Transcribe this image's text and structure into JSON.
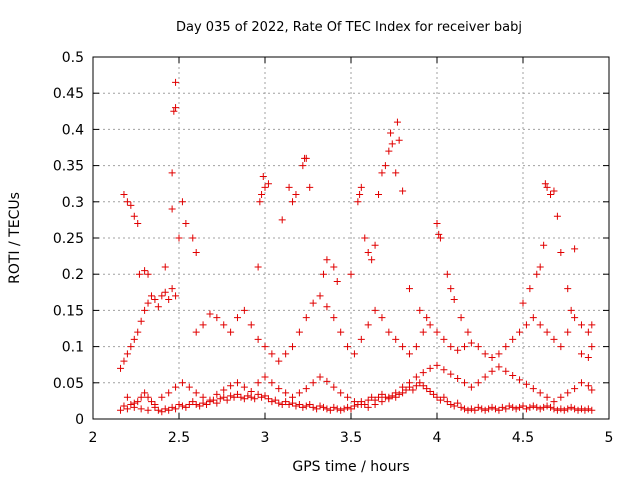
{
  "chart_data": {
    "type": "scatter",
    "title": "Day 035 of 2022, Rate Of TEC Index for receiver babj",
    "xlabel": "GPS time / hours",
    "ylabel": "ROTI / TECUs",
    "xlim": [
      2,
      5
    ],
    "ylim": [
      0,
      0.5
    ],
    "grid": true,
    "marker": "plus",
    "color": "#e00000",
    "x_ticks": [
      "2",
      "2.5",
      "3",
      "3.5",
      "4",
      "4.5",
      "5"
    ],
    "y_ticks": [
      "0",
      "0.05",
      "0.1",
      "0.15",
      "0.2",
      "0.25",
      "0.3",
      "0.35",
      "0.4",
      "0.45",
      "0.5"
    ],
    "points": [
      [
        2.16,
        0.012
      ],
      [
        2.18,
        0.018
      ],
      [
        2.2,
        0.014
      ],
      [
        2.22,
        0.02
      ],
      [
        2.24,
        0.016
      ],
      [
        2.26,
        0.024
      ],
      [
        2.28,
        0.03
      ],
      [
        2.3,
        0.036
      ],
      [
        2.32,
        0.03
      ],
      [
        2.34,
        0.024
      ],
      [
        2.36,
        0.016
      ],
      [
        2.38,
        0.012
      ],
      [
        2.4,
        0.01
      ],
      [
        2.42,
        0.014
      ],
      [
        2.44,
        0.012
      ],
      [
        2.46,
        0.016
      ],
      [
        2.48,
        0.014
      ],
      [
        2.5,
        0.02
      ],
      [
        2.52,
        0.018
      ],
      [
        2.54,
        0.016
      ],
      [
        2.56,
        0.02
      ],
      [
        2.58,
        0.024
      ],
      [
        2.6,
        0.02
      ],
      [
        2.62,
        0.018
      ],
      [
        2.64,
        0.022
      ],
      [
        2.66,
        0.02
      ],
      [
        2.68,
        0.024
      ],
      [
        2.7,
        0.026
      ],
      [
        2.72,
        0.022
      ],
      [
        2.74,
        0.028
      ],
      [
        2.76,
        0.03
      ],
      [
        2.78,
        0.026
      ],
      [
        2.8,
        0.032
      ],
      [
        2.82,
        0.03
      ],
      [
        2.84,
        0.034
      ],
      [
        2.86,
        0.03
      ],
      [
        2.88,
        0.028
      ],
      [
        2.9,
        0.032
      ],
      [
        2.92,
        0.03
      ],
      [
        2.94,
        0.028
      ],
      [
        2.96,
        0.034
      ],
      [
        2.98,
        0.03
      ],
      [
        3.0,
        0.032
      ],
      [
        3.02,
        0.028
      ],
      [
        3.04,
        0.024
      ],
      [
        3.06,
        0.026
      ],
      [
        3.08,
        0.022
      ],
      [
        3.1,
        0.02
      ],
      [
        3.12,
        0.024
      ],
      [
        3.14,
        0.02
      ],
      [
        3.16,
        0.022
      ],
      [
        3.18,
        0.018
      ],
      [
        3.2,
        0.02
      ],
      [
        3.22,
        0.016
      ],
      [
        3.24,
        0.018
      ],
      [
        3.26,
        0.02
      ],
      [
        3.28,
        0.016
      ],
      [
        3.3,
        0.014
      ],
      [
        3.32,
        0.018
      ],
      [
        3.34,
        0.016
      ],
      [
        3.36,
        0.014
      ],
      [
        3.38,
        0.012
      ],
      [
        3.4,
        0.016
      ],
      [
        3.42,
        0.014
      ],
      [
        3.44,
        0.012
      ],
      [
        3.46,
        0.014
      ],
      [
        3.48,
        0.016
      ],
      [
        3.5,
        0.014
      ],
      [
        3.52,
        0.018
      ],
      [
        3.54,
        0.02
      ],
      [
        3.56,
        0.024
      ],
      [
        3.58,
        0.02
      ],
      [
        3.6,
        0.026
      ],
      [
        3.62,
        0.03
      ],
      [
        3.64,
        0.026
      ],
      [
        3.66,
        0.03
      ],
      [
        3.68,
        0.034
      ],
      [
        3.7,
        0.03
      ],
      [
        3.72,
        0.028
      ],
      [
        3.74,
        0.032
      ],
      [
        3.76,
        0.03
      ],
      [
        3.78,
        0.034
      ],
      [
        3.8,
        0.036
      ],
      [
        3.82,
        0.04
      ],
      [
        3.84,
        0.044
      ],
      [
        3.86,
        0.04
      ],
      [
        3.88,
        0.046
      ],
      [
        3.9,
        0.05
      ],
      [
        3.92,
        0.046
      ],
      [
        3.94,
        0.042
      ],
      [
        3.96,
        0.038
      ],
      [
        3.98,
        0.034
      ],
      [
        4.0,
        0.03
      ],
      [
        4.02,
        0.026
      ],
      [
        4.04,
        0.03
      ],
      [
        4.06,
        0.024
      ],
      [
        4.08,
        0.02
      ],
      [
        4.1,
        0.018
      ],
      [
        4.12,
        0.022
      ],
      [
        4.14,
        0.016
      ],
      [
        4.16,
        0.014
      ],
      [
        4.18,
        0.012
      ],
      [
        4.2,
        0.014
      ],
      [
        4.22,
        0.012
      ],
      [
        4.24,
        0.016
      ],
      [
        4.26,
        0.014
      ],
      [
        4.28,
        0.012
      ],
      [
        4.3,
        0.014
      ],
      [
        4.32,
        0.016
      ],
      [
        4.34,
        0.014
      ],
      [
        4.36,
        0.012
      ],
      [
        4.38,
        0.016
      ],
      [
        4.4,
        0.014
      ],
      [
        4.42,
        0.018
      ],
      [
        4.44,
        0.016
      ],
      [
        4.46,
        0.014
      ],
      [
        4.48,
        0.016
      ],
      [
        4.5,
        0.018
      ],
      [
        4.52,
        0.014
      ],
      [
        4.54,
        0.016
      ],
      [
        4.56,
        0.018
      ],
      [
        4.58,
        0.016
      ],
      [
        4.6,
        0.014
      ],
      [
        4.62,
        0.016
      ],
      [
        4.64,
        0.018
      ],
      [
        4.66,
        0.016
      ],
      [
        4.68,
        0.014
      ],
      [
        4.7,
        0.012
      ],
      [
        4.72,
        0.014
      ],
      [
        4.74,
        0.012
      ],
      [
        4.76,
        0.014
      ],
      [
        4.78,
        0.016
      ],
      [
        4.8,
        0.014
      ],
      [
        4.82,
        0.012
      ],
      [
        4.84,
        0.014
      ],
      [
        4.86,
        0.012
      ],
      [
        4.88,
        0.014
      ],
      [
        4.9,
        0.012
      ],
      [
        2.2,
        0.03
      ],
      [
        2.24,
        0.022
      ],
      [
        2.28,
        0.014
      ],
      [
        2.32,
        0.012
      ],
      [
        2.36,
        0.02
      ],
      [
        2.4,
        0.03
      ],
      [
        2.44,
        0.036
      ],
      [
        2.48,
        0.044
      ],
      [
        2.52,
        0.05
      ],
      [
        2.56,
        0.044
      ],
      [
        2.6,
        0.036
      ],
      [
        2.64,
        0.03
      ],
      [
        2.68,
        0.026
      ],
      [
        2.72,
        0.034
      ],
      [
        2.76,
        0.04
      ],
      [
        2.8,
        0.046
      ],
      [
        2.84,
        0.05
      ],
      [
        2.88,
        0.044
      ],
      [
        2.92,
        0.038
      ],
      [
        2.96,
        0.05
      ],
      [
        3.0,
        0.058
      ],
      [
        3.04,
        0.05
      ],
      [
        3.08,
        0.042
      ],
      [
        3.12,
        0.036
      ],
      [
        3.16,
        0.03
      ],
      [
        3.2,
        0.036
      ],
      [
        3.24,
        0.042
      ],
      [
        3.28,
        0.05
      ],
      [
        3.32,
        0.058
      ],
      [
        3.36,
        0.052
      ],
      [
        3.4,
        0.044
      ],
      [
        3.44,
        0.036
      ],
      [
        3.48,
        0.03
      ],
      [
        3.52,
        0.024
      ],
      [
        3.56,
        0.02
      ],
      [
        3.6,
        0.016
      ],
      [
        3.64,
        0.02
      ],
      [
        3.68,
        0.024
      ],
      [
        3.72,
        0.03
      ],
      [
        3.76,
        0.036
      ],
      [
        3.8,
        0.044
      ],
      [
        3.84,
        0.05
      ],
      [
        3.88,
        0.058
      ],
      [
        3.92,
        0.064
      ],
      [
        3.96,
        0.07
      ],
      [
        4.0,
        0.074
      ],
      [
        4.04,
        0.068
      ],
      [
        4.08,
        0.062
      ],
      [
        4.12,
        0.056
      ],
      [
        4.16,
        0.05
      ],
      [
        4.2,
        0.044
      ],
      [
        4.24,
        0.05
      ],
      [
        4.28,
        0.058
      ],
      [
        4.32,
        0.066
      ],
      [
        4.36,
        0.072
      ],
      [
        4.4,
        0.066
      ],
      [
        4.44,
        0.06
      ],
      [
        4.48,
        0.054
      ],
      [
        4.52,
        0.048
      ],
      [
        4.56,
        0.042
      ],
      [
        4.6,
        0.036
      ],
      [
        4.64,
        0.03
      ],
      [
        4.68,
        0.024
      ],
      [
        4.72,
        0.03
      ],
      [
        4.76,
        0.036
      ],
      [
        4.8,
        0.042
      ],
      [
        4.84,
        0.05
      ],
      [
        4.88,
        0.046
      ],
      [
        4.9,
        0.04
      ],
      [
        2.16,
        0.07
      ],
      [
        2.18,
        0.08
      ],
      [
        2.2,
        0.09
      ],
      [
        2.22,
        0.1
      ],
      [
        2.24,
        0.11
      ],
      [
        2.26,
        0.12
      ],
      [
        2.28,
        0.135
      ],
      [
        2.3,
        0.15
      ],
      [
        2.32,
        0.16
      ],
      [
        2.34,
        0.17
      ],
      [
        2.36,
        0.165
      ],
      [
        2.38,
        0.155
      ],
      [
        2.4,
        0.17
      ],
      [
        2.42,
        0.175
      ],
      [
        2.44,
        0.165
      ],
      [
        2.46,
        0.18
      ],
      [
        2.48,
        0.17
      ],
      [
        2.6,
        0.12
      ],
      [
        2.64,
        0.13
      ],
      [
        2.68,
        0.145
      ],
      [
        2.72,
        0.14
      ],
      [
        2.76,
        0.13
      ],
      [
        2.8,
        0.12
      ],
      [
        2.84,
        0.14
      ],
      [
        2.88,
        0.15
      ],
      [
        2.92,
        0.13
      ],
      [
        2.96,
        0.11
      ],
      [
        3.0,
        0.1
      ],
      [
        3.04,
        0.09
      ],
      [
        3.08,
        0.08
      ],
      [
        3.12,
        0.09
      ],
      [
        3.16,
        0.1
      ],
      [
        3.2,
        0.12
      ],
      [
        3.24,
        0.14
      ],
      [
        3.28,
        0.16
      ],
      [
        3.32,
        0.17
      ],
      [
        3.36,
        0.155
      ],
      [
        3.4,
        0.14
      ],
      [
        3.44,
        0.12
      ],
      [
        3.48,
        0.1
      ],
      [
        3.52,
        0.09
      ],
      [
        3.56,
        0.11
      ],
      [
        3.6,
        0.13
      ],
      [
        3.64,
        0.15
      ],
      [
        3.68,
        0.14
      ],
      [
        3.72,
        0.12
      ],
      [
        3.76,
        0.11
      ],
      [
        3.8,
        0.1
      ],
      [
        3.84,
        0.09
      ],
      [
        3.88,
        0.1
      ],
      [
        3.92,
        0.12
      ],
      [
        3.96,
        0.13
      ],
      [
        4.0,
        0.12
      ],
      [
        4.04,
        0.11
      ],
      [
        4.08,
        0.1
      ],
      [
        4.12,
        0.095
      ],
      [
        4.16,
        0.1
      ],
      [
        4.2,
        0.105
      ],
      [
        4.24,
        0.1
      ],
      [
        4.28,
        0.09
      ],
      [
        4.32,
        0.085
      ],
      [
        4.36,
        0.09
      ],
      [
        4.4,
        0.1
      ],
      [
        4.44,
        0.11
      ],
      [
        4.48,
        0.12
      ],
      [
        4.52,
        0.13
      ],
      [
        4.56,
        0.14
      ],
      [
        4.6,
        0.13
      ],
      [
        4.64,
        0.12
      ],
      [
        4.68,
        0.11
      ],
      [
        4.72,
        0.1
      ],
      [
        4.76,
        0.12
      ],
      [
        4.8,
        0.14
      ],
      [
        4.84,
        0.13
      ],
      [
        4.88,
        0.12
      ],
      [
        4.9,
        0.13
      ],
      [
        2.18,
        0.31
      ],
      [
        2.2,
        0.3
      ],
      [
        2.22,
        0.295
      ],
      [
        2.24,
        0.28
      ],
      [
        2.26,
        0.27
      ],
      [
        2.27,
        0.2
      ],
      [
        2.3,
        0.205
      ],
      [
        2.32,
        0.2
      ],
      [
        2.42,
        0.21
      ],
      [
        2.46,
        0.29
      ],
      [
        2.46,
        0.34
      ],
      [
        2.47,
        0.425
      ],
      [
        2.48,
        0.43
      ],
      [
        2.48,
        0.465
      ],
      [
        2.5,
        0.25
      ],
      [
        2.52,
        0.3
      ],
      [
        2.54,
        0.27
      ],
      [
        2.58,
        0.25
      ],
      [
        2.6,
        0.23
      ],
      [
        2.96,
        0.21
      ],
      [
        2.97,
        0.3
      ],
      [
        2.98,
        0.31
      ],
      [
        2.99,
        0.335
      ],
      [
        3.0,
        0.32
      ],
      [
        3.02,
        0.325
      ],
      [
        3.1,
        0.275
      ],
      [
        3.14,
        0.32
      ],
      [
        3.16,
        0.3
      ],
      [
        3.18,
        0.31
      ],
      [
        3.22,
        0.35
      ],
      [
        3.23,
        0.36
      ],
      [
        3.24,
        0.36
      ],
      [
        3.26,
        0.32
      ],
      [
        3.34,
        0.2
      ],
      [
        3.36,
        0.22
      ],
      [
        3.4,
        0.21
      ],
      [
        3.42,
        0.19
      ],
      [
        3.5,
        0.2
      ],
      [
        3.54,
        0.3
      ],
      [
        3.55,
        0.31
      ],
      [
        3.56,
        0.32
      ],
      [
        3.58,
        0.25
      ],
      [
        3.6,
        0.23
      ],
      [
        3.62,
        0.22
      ],
      [
        3.64,
        0.24
      ],
      [
        3.66,
        0.31
      ],
      [
        3.68,
        0.34
      ],
      [
        3.7,
        0.35
      ],
      [
        3.72,
        0.37
      ],
      [
        3.73,
        0.395
      ],
      [
        3.74,
        0.38
      ],
      [
        3.76,
        0.34
      ],
      [
        3.77,
        0.41
      ],
      [
        3.78,
        0.385
      ],
      [
        3.8,
        0.315
      ],
      [
        3.84,
        0.18
      ],
      [
        3.9,
        0.15
      ],
      [
        3.94,
        0.14
      ],
      [
        4.0,
        0.27
      ],
      [
        4.01,
        0.255
      ],
      [
        4.02,
        0.25
      ],
      [
        4.06,
        0.2
      ],
      [
        4.08,
        0.18
      ],
      [
        4.1,
        0.165
      ],
      [
        4.14,
        0.14
      ],
      [
        4.18,
        0.12
      ],
      [
        4.5,
        0.16
      ],
      [
        4.54,
        0.18
      ],
      [
        4.58,
        0.2
      ],
      [
        4.6,
        0.21
      ],
      [
        4.62,
        0.24
      ],
      [
        4.63,
        0.325
      ],
      [
        4.64,
        0.32
      ],
      [
        4.66,
        0.31
      ],
      [
        4.68,
        0.315
      ],
      [
        4.7,
        0.28
      ],
      [
        4.72,
        0.23
      ],
      [
        4.76,
        0.18
      ],
      [
        4.78,
        0.15
      ],
      [
        4.8,
        0.235
      ],
      [
        4.84,
        0.09
      ],
      [
        4.88,
        0.085
      ],
      [
        4.9,
        0.1
      ]
    ]
  }
}
